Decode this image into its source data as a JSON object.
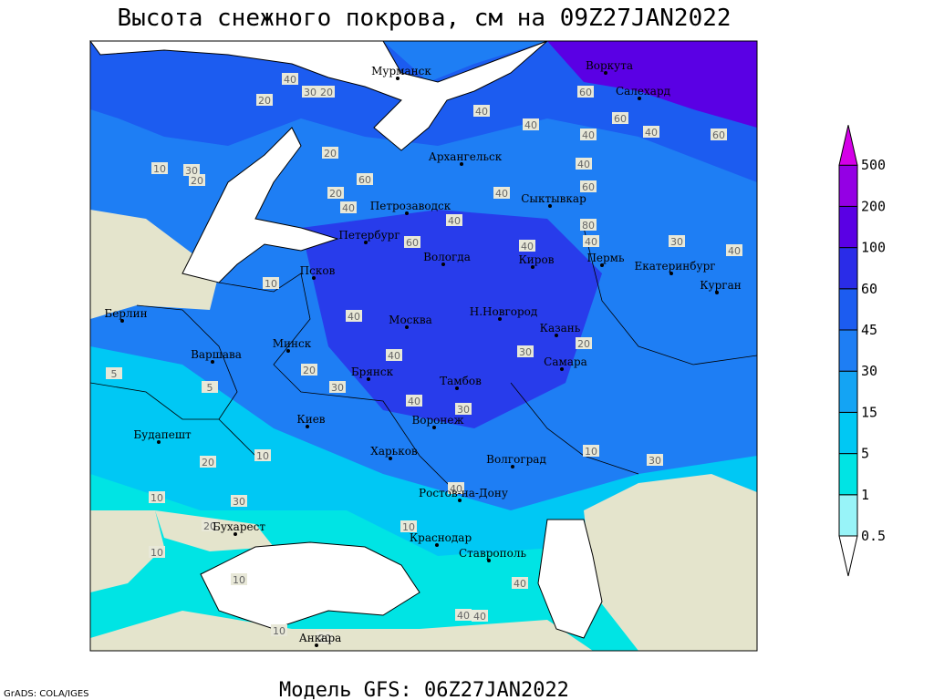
{
  "header": {
    "title": "Высота снежного покрова, см на 09Z27JAN2022"
  },
  "footer": {
    "model": "Модель GFS: 06Z27JAN2022",
    "credit": "GrADS: COLA/IGES"
  },
  "cities": [
    "Мурманск",
    "Архангельск",
    "Воркута",
    "Салехард",
    "Петрозаводск",
    "Сыктывкар",
    "Петербург",
    "Вологда",
    "Киров",
    "Пермь",
    "Екатеринбург",
    "Курган",
    "Псков",
    "Н.Новгород",
    "Москва",
    "Казань",
    "Берлин",
    "Минск",
    "Варшава",
    "Брянск",
    "Тамбов",
    "Самара",
    "Киев",
    "Воронеж",
    "Будапешт",
    "Харьков",
    "Волгоград",
    "Ростов-на-Дону",
    "Бухарест",
    "Краснодар",
    "Ставрополь",
    "Анкара"
  ],
  "contour_labels": [
    40,
    30,
    20,
    20,
    40,
    60,
    60,
    40,
    40,
    60,
    40,
    60,
    10,
    30,
    20,
    20,
    20,
    60,
    40,
    40,
    40,
    40,
    60,
    80,
    40,
    30,
    40,
    10,
    40,
    40,
    20,
    30,
    40,
    30,
    30,
    20,
    10,
    5,
    5,
    20,
    10,
    10,
    10,
    30,
    10,
    20,
    20,
    10,
    10,
    40,
    40,
    40,
    40,
    30,
    40
  ],
  "legend": {
    "items": [
      {
        "label": "0.5",
        "color": "#98f4f8"
      },
      {
        "label": "1",
        "color": "#00e4e4"
      },
      {
        "label": "5",
        "color": "#00c8f4"
      },
      {
        "label": "15",
        "color": "#14a4f4"
      },
      {
        "label": "30",
        "color": "#1e7ef4"
      },
      {
        "label": "45",
        "color": "#1c5cf0"
      },
      {
        "label": "60",
        "color": "#2a2ce8"
      },
      {
        "label": "100",
        "color": "#5a00e4"
      },
      {
        "label": "200",
        "color": "#9400e4"
      },
      {
        "label": "500",
        "color": "#d400e8"
      }
    ],
    "below_color": "#ffffff"
  }
}
